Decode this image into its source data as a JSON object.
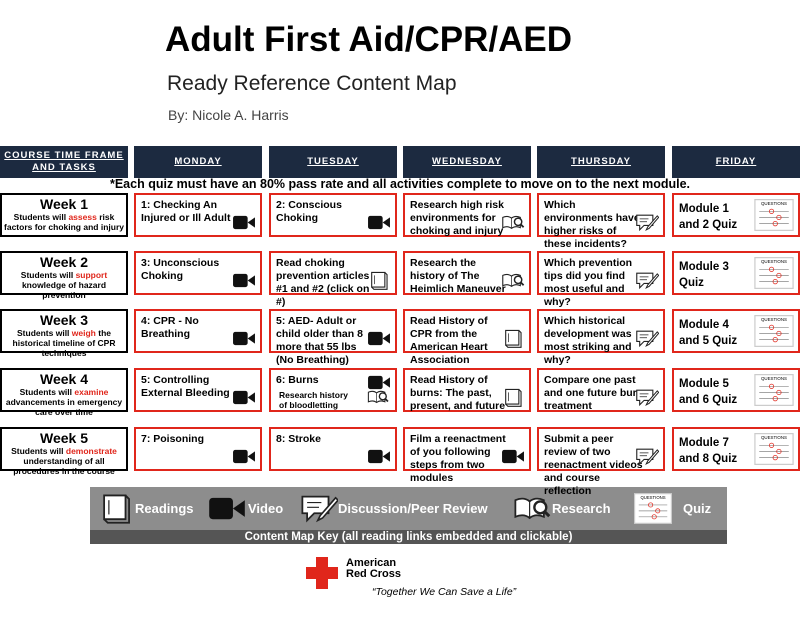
{
  "header": {
    "title": "Adult First Aid/CPR/AED",
    "subtitle": "Ready Reference Content Map",
    "author": "By: Nicole A. Harris"
  },
  "table": {
    "columns": [
      "COURSE TIME FRAME AND TASKS",
      "MONDAY",
      "TUESDAY",
      "WEDNESDAY",
      "THURSDAY",
      "FRIDAY"
    ],
    "note": "*Each quiz must have an 80% pass rate and all activities complete to move on to the next module.",
    "quiz_icon_title": "QUESTIONS",
    "rows": [
      {
        "week": "Week 1",
        "goal": [
          "Students will ",
          "assess",
          " risk factors for choking and injury"
        ],
        "cells": [
          {
            "text": "1: Checking An Injured or Ill Adult"
          },
          {
            "text": "2: Conscious Choking"
          },
          {
            "text": "Research high risk environments for choking and injury"
          },
          {
            "text": "Which environments have higher risks of these incidents?"
          },
          {
            "text": "Module 1 and 2 Quiz"
          }
        ]
      },
      {
        "week": "Week 2",
        "goal": [
          "Students will ",
          "support",
          " knowledge of hazard prevention"
        ],
        "cells": [
          {
            "text": "3: Unconscious Choking"
          },
          {
            "text": "Read choking prevention articles #1 and #2 (click on #)"
          },
          {
            "text": "Research the history of The Heimlich Maneuver"
          },
          {
            "text": "Which prevention tips did you find most useful and why?"
          },
          {
            "text": "Module 3 Quiz"
          }
        ]
      },
      {
        "week": "Week 3",
        "goal": [
          "Students will ",
          "weigh",
          " the historical timeline of CPR techniques"
        ],
        "cells": [
          {
            "text": "4: CPR - No Breathing"
          },
          {
            "text": "5: AED- Adult or child older than 8 more that 55 lbs (No Breathing)"
          },
          {
            "text": "Read History of CPR from the American Heart Association"
          },
          {
            "text": "Which historical development was most striking and why?"
          },
          {
            "text": "Module 4 and 5 Quiz"
          }
        ]
      },
      {
        "week": "Week 4",
        "goal": [
          "Students will ",
          "examine",
          " advancements in emergency care over time"
        ],
        "cells": [
          {
            "text": "5: Controlling External Bleeding"
          },
          {
            "text": "6: Burns",
            "note": "Research history of bloodletting"
          },
          {
            "text": "Read History of burns: The past, present, and future"
          },
          {
            "text": "Compare one past and one future burn treatment"
          },
          {
            "text": "Module 5 and 6 Quiz"
          }
        ]
      },
      {
        "week": "Week 5",
        "goal": [
          "Students will ",
          "demonstrate",
          " understanding of all procedures in the course"
        ],
        "cells": [
          {
            "text": "7: Poisoning"
          },
          {
            "text": "8: Stroke"
          },
          {
            "text": "Film a reenactment of you following steps from two modules"
          },
          {
            "text": "Submit a peer review of two reenactment videos and course reflection"
          },
          {
            "text": "Module 7 and 8 Quiz"
          }
        ]
      }
    ]
  },
  "key": {
    "items": [
      "Readings",
      "Video",
      "Discussion/Peer Review",
      "Research",
      "Quiz"
    ],
    "caption": "Content Map Key (all reading links embedded and clickable)"
  },
  "footer": {
    "org": [
      "American",
      "Red Cross"
    ],
    "tagline": "“Together We Can Save a Life”"
  }
}
